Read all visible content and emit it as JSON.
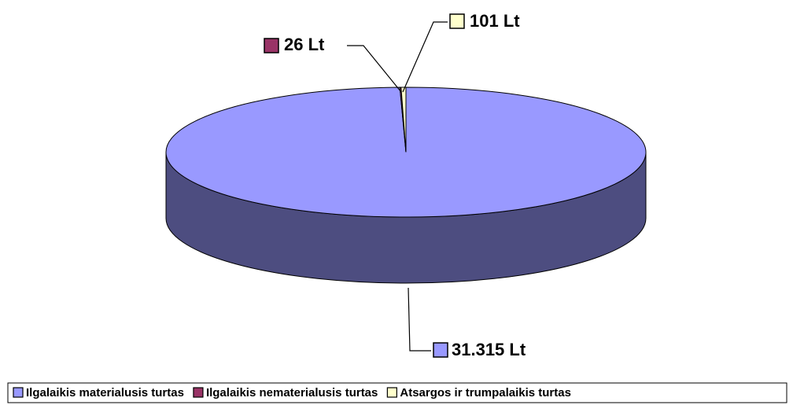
{
  "chart_data": {
    "type": "pie",
    "categories": [
      "Ilgalaikis materialusis turtas",
      "Ilgalaikis nematerialusis turtas",
      "Atsargos ir trumpalaikis turtas"
    ],
    "values": [
      31315,
      26,
      101
    ],
    "value_labels": [
      "31.315 Lt",
      "26 Lt",
      "101 Lt"
    ],
    "colors": [
      "#9999ff",
      "#993366",
      "#ffffcc"
    ],
    "legend": "bottom"
  }
}
